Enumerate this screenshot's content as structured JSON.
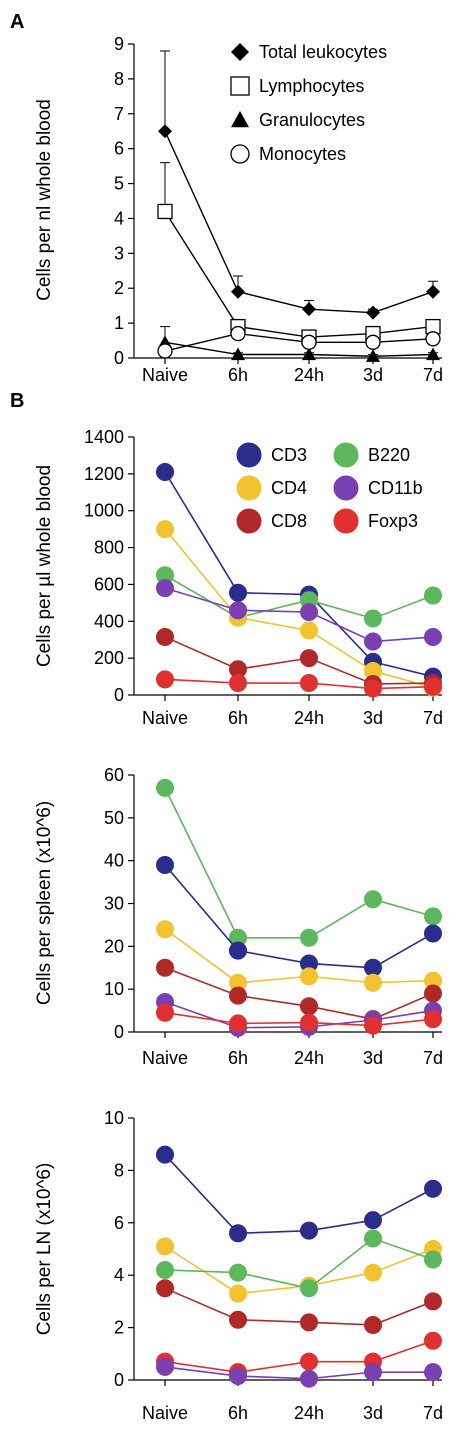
{
  "chart_data": [
    {
      "panel": "A",
      "type": "line",
      "title": "",
      "xlabel": "",
      "ylabel": "Cells per nl whole blood",
      "categories": [
        "Naive",
        "6h",
        "24h",
        "3d",
        "7d"
      ],
      "ylim": [
        0,
        9
      ],
      "yticks": [
        0,
        1,
        2,
        3,
        4,
        5,
        6,
        7,
        8,
        9
      ],
      "legend": "top-right",
      "series": [
        {
          "name": "Total leukocytes",
          "marker": "diamond",
          "values": [
            6.5,
            1.9,
            1.4,
            1.3,
            1.9
          ],
          "errors": [
            2.3,
            0.45,
            0.25,
            0.1,
            0.3
          ]
        },
        {
          "name": "Lymphocytes",
          "marker": "square-open",
          "values": [
            4.2,
            0.9,
            0.6,
            0.7,
            0.9
          ],
          "errors": [
            1.4,
            0.2,
            0.1,
            0.1,
            0.1
          ]
        },
        {
          "name": "Granulocytes",
          "marker": "triangle",
          "values": [
            0.45,
            0.1,
            0.1,
            0.05,
            0.1
          ],
          "errors": [
            0.45,
            0.05,
            0.05,
            0.05,
            0.05
          ]
        },
        {
          "name": "Monocytes",
          "marker": "circle-open",
          "values": [
            0.2,
            0.7,
            0.45,
            0.45,
            0.55
          ],
          "errors": [
            0.1,
            0.1,
            0.05,
            0.05,
            0.05
          ]
        }
      ]
    },
    {
      "panel": "B",
      "type": "line",
      "title": "",
      "xlabel": "",
      "ylabel": "Cells per µl whole blood",
      "categories": [
        "Naive",
        "6h",
        "24h",
        "3d",
        "7d"
      ],
      "ylim": [
        0,
        1400
      ],
      "yticks": [
        0,
        200,
        400,
        600,
        800,
        1000,
        1200,
        1400
      ],
      "legend": "top-right",
      "series": [
        {
          "name": "CD3",
          "color": "#2a2d8c",
          "values": [
            1210,
            555,
            545,
            180,
            100
          ]
        },
        {
          "name": "B220",
          "color": "#5cb85c",
          "values": [
            650,
            420,
            515,
            415,
            540
          ]
        },
        {
          "name": "CD4",
          "color": "#f2c230",
          "values": [
            900,
            420,
            350,
            130,
            40
          ]
        },
        {
          "name": "CD11b",
          "color": "#7a3fb0",
          "values": [
            580,
            460,
            450,
            290,
            315
          ]
        },
        {
          "name": "CD8",
          "color": "#b02828",
          "values": [
            315,
            140,
            200,
            60,
            65
          ]
        },
        {
          "name": "Foxp3",
          "color": "#e03030",
          "values": [
            85,
            65,
            65,
            35,
            45
          ]
        }
      ]
    },
    {
      "panel": "",
      "type": "line",
      "title": "",
      "xlabel": "",
      "ylabel": "Cells per spleen (x10^6)",
      "categories": [
        "Naive",
        "6h",
        "24h",
        "3d",
        "7d"
      ],
      "ylim": [
        0,
        60
      ],
      "yticks": [
        0,
        10,
        20,
        30,
        40,
        50,
        60
      ],
      "series": [
        {
          "name": "B220",
          "color": "#5cb85c",
          "values": [
            57,
            22,
            22,
            31,
            27
          ]
        },
        {
          "name": "CD3",
          "color": "#2a2d8c",
          "values": [
            39,
            19,
            16,
            15,
            23
          ]
        },
        {
          "name": "CD4",
          "color": "#f2c230",
          "values": [
            24,
            11.5,
            13,
            11.5,
            12
          ]
        },
        {
          "name": "CD8",
          "color": "#b02828",
          "values": [
            15,
            8.5,
            6,
            3,
            9
          ]
        },
        {
          "name": "CD11b",
          "color": "#7a3fb0",
          "values": [
            7,
            1,
            1.2,
            2.8,
            5
          ]
        },
        {
          "name": "Foxp3",
          "color": "#e03030",
          "values": [
            4.5,
            2,
            2.2,
            1.5,
            3
          ]
        }
      ]
    },
    {
      "panel": "",
      "type": "line",
      "title": "",
      "xlabel": "",
      "ylabel": "Cells per LN (x10^6)",
      "categories": [
        "Naive",
        "6h",
        "24h",
        "3d",
        "7d"
      ],
      "ylim": [
        0,
        10
      ],
      "yticks": [
        0,
        2,
        4,
        6,
        8,
        10
      ],
      "series": [
        {
          "name": "CD3",
          "color": "#2a2d8c",
          "values": [
            8.6,
            5.6,
            5.7,
            6.1,
            7.3
          ]
        },
        {
          "name": "CD4",
          "color": "#f2c230",
          "values": [
            5.1,
            3.3,
            3.6,
            4.1,
            5.0
          ]
        },
        {
          "name": "B220",
          "color": "#5cb85c",
          "values": [
            4.2,
            4.1,
            3.5,
            5.4,
            4.6
          ]
        },
        {
          "name": "CD8",
          "color": "#b02828",
          "values": [
            3.5,
            2.3,
            2.2,
            2.1,
            3.0
          ]
        },
        {
          "name": "Foxp3",
          "color": "#e03030",
          "values": [
            0.7,
            0.3,
            0.7,
            0.7,
            1.5
          ]
        },
        {
          "name": "CD11b",
          "color": "#7a3fb0",
          "values": [
            0.5,
            0.15,
            0.05,
            0.3,
            0.3
          ]
        }
      ]
    }
  ]
}
